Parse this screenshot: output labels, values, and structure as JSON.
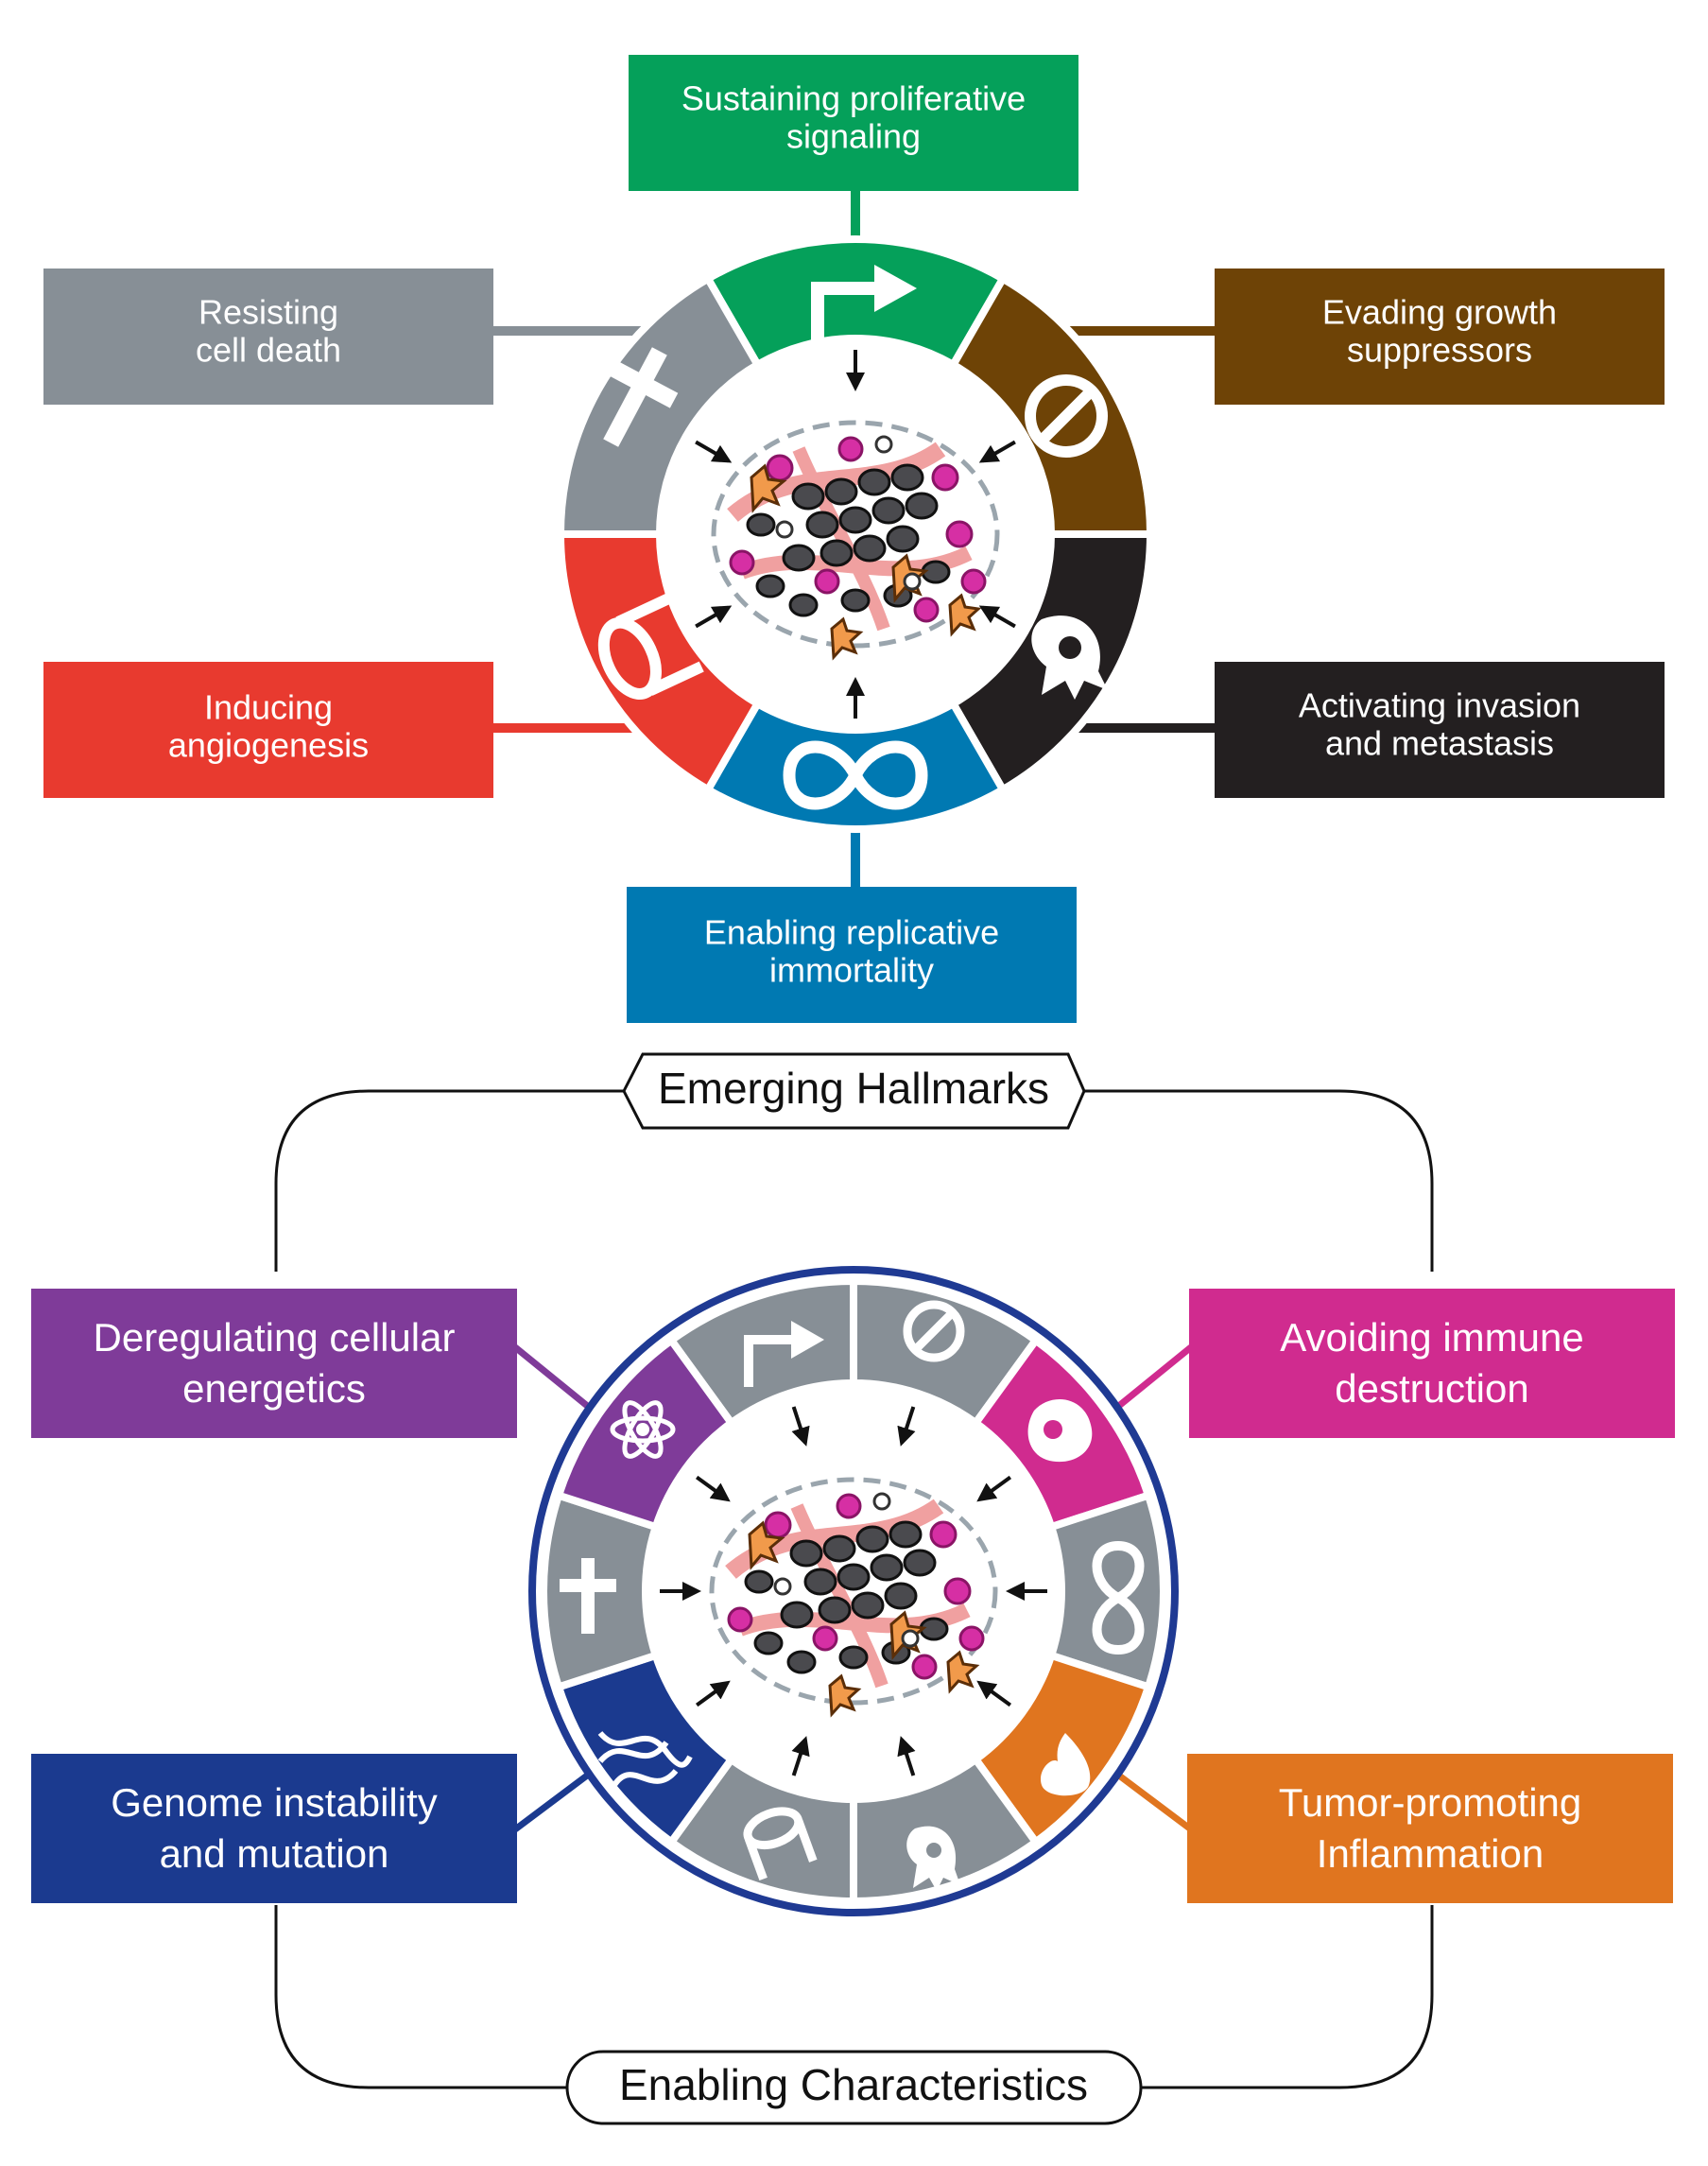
{
  "colors": {
    "proliferative": "#05a05a",
    "growth_suppressors": "#6e4306",
    "cell_death": "#878f96",
    "angiogenesis": "#e83a2f",
    "invasion": "#231f20",
    "immortality": "#0079b2",
    "energetics": "#7f3b99",
    "immune": "#d02b8f",
    "genome": "#1b3a8f",
    "inflammation": "#e0751f",
    "grey_segment": "#878f96",
    "ring_outline": "#1f3a93"
  },
  "hallmarks": {
    "proliferative": [
      "Sustaining proliferative",
      "signaling"
    ],
    "growth_suppressors": [
      "Evading growth",
      "suppressors"
    ],
    "cell_death": [
      "Resisting",
      "cell death"
    ],
    "angiogenesis": [
      "Inducing",
      "angiogenesis"
    ],
    "invasion": [
      "Activating invasion",
      "and metastasis"
    ],
    "immortality": [
      "Enabling replicative",
      "immortality"
    ]
  },
  "emerging": {
    "title": "Emerging Hallmarks",
    "energetics": [
      "Deregulating cellular",
      "energetics"
    ],
    "immune": [
      "Avoiding immune",
      "destruction"
    ]
  },
  "enabling": {
    "title": "Enabling Characteristics",
    "genome": [
      "Genome instability",
      "and mutation"
    ],
    "inflammation": [
      "Tumor-promoting",
      "Inflammation"
    ]
  },
  "icons": {
    "top_wheel": [
      "bent-arrow-icon",
      "no-entry-icon",
      "invading-cell-icon",
      "infinity-icon",
      "vessel-icon",
      "cross-icon"
    ],
    "bottom_wheel": [
      "bent-arrow-icon",
      "no-entry-icon",
      "macrophage-icon",
      "infinity-icon",
      "flame-icon",
      "invading-cell-icon",
      "vessel-icon",
      "dna-icon",
      "cross-icon",
      "atom-icon"
    ]
  }
}
